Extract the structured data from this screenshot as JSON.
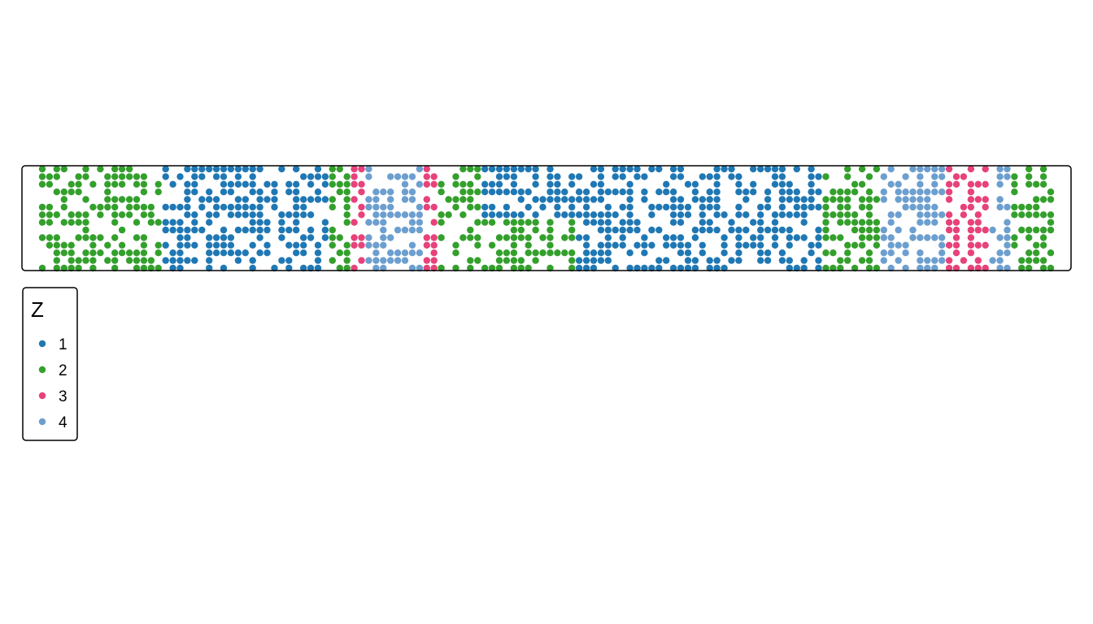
{
  "chart_data": {
    "type": "scatter",
    "title": "",
    "xlabel": "",
    "ylabel": "",
    "grid": false,
    "x_range": [
      1,
      140
    ],
    "y_range": [
      1,
      14
    ],
    "legend": {
      "title": "Z",
      "placement": "bottom-left",
      "entries": [
        {
          "label": "1",
          "color": "#1f78b4"
        },
        {
          "label": "2",
          "color": "#33a02c"
        },
        {
          "label": "3",
          "color": "#e7427a"
        },
        {
          "label": "4",
          "color": "#6c9fcf"
        }
      ]
    },
    "region_layout": [
      {
        "z": "3",
        "x": [
          1,
          140
        ],
        "y": [
          1,
          14
        ]
      },
      {
        "z": "2",
        "x": [
          1,
          17
        ],
        "y": [
          1,
          14
        ]
      },
      {
        "z": "1",
        "x": [
          18,
          40
        ],
        "y": [
          1,
          14
        ]
      },
      {
        "z": "2",
        "x": [
          41,
          43
        ],
        "y": [
          1,
          14
        ]
      },
      {
        "z": "3",
        "x": [
          44,
          45
        ],
        "y": [
          1,
          14
        ]
      },
      {
        "z": "4",
        "x": [
          46,
          53
        ],
        "y": [
          1,
          14
        ]
      },
      {
        "z": "3",
        "x": [
          54,
          55
        ],
        "y": [
          1,
          14
        ]
      },
      {
        "z": "2",
        "x": [
          56,
          62
        ],
        "y": [
          1,
          14
        ]
      },
      {
        "z": "1",
        "x": [
          62,
          74
        ],
        "y": [
          8,
          14
        ]
      },
      {
        "z": "2",
        "x": [
          62,
          78
        ],
        "y": [
          1,
          7
        ]
      },
      {
        "z": "1",
        "x": [
          75,
          108
        ],
        "y": [
          1,
          14
        ]
      },
      {
        "z": "2",
        "x": [
          109,
          116
        ],
        "y": [
          1,
          14
        ]
      },
      {
        "z": "4",
        "x": [
          117,
          125
        ],
        "y": [
          1,
          14
        ]
      },
      {
        "z": "3",
        "x": [
          126,
          131
        ],
        "y": [
          1,
          14
        ]
      },
      {
        "z": "4",
        "x": [
          132,
          134
        ],
        "y": [
          1,
          14
        ]
      },
      {
        "z": "2",
        "x": [
          135,
          140
        ],
        "y": [
          1,
          14
        ]
      }
    ],
    "density": 0.55,
    "seed": 7
  }
}
